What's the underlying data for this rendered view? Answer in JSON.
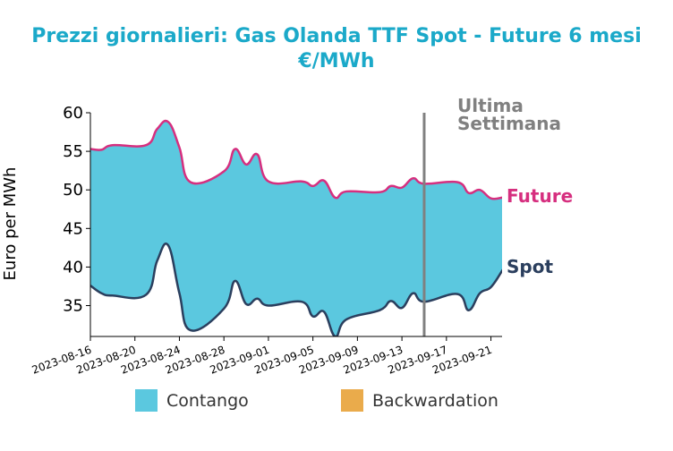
{
  "chart_data": {
    "type": "area",
    "title_line1": "Prezzi giornalieri: Gas Olanda TTF Spot - Future 6 mesi",
    "title_line2": "€/MWh",
    "ylabel": "Euro per MWh",
    "ylim": [
      31,
      60
    ],
    "yticks": [
      35,
      40,
      45,
      50,
      55,
      60
    ],
    "x_start": "2023-08-16",
    "x_end": "2023-09-22",
    "xtick_labels": [
      "2023-08-16",
      "2023-08-20",
      "2023-08-24",
      "2023-08-28",
      "2023-09-01",
      "2023-09-05",
      "2023-09-09",
      "2023-09-13",
      "2023-09-17",
      "2023-09-21"
    ],
    "dates": [
      "2023-08-16",
      "2023-08-17",
      "2023-08-18",
      "2023-08-21",
      "2023-08-22",
      "2023-08-23",
      "2023-08-24",
      "2023-08-25",
      "2023-08-28",
      "2023-08-29",
      "2023-08-30",
      "2023-08-31",
      "2023-09-01",
      "2023-09-04",
      "2023-09-05",
      "2023-09-06",
      "2023-09-07",
      "2023-09-08",
      "2023-09-11",
      "2023-09-12",
      "2023-09-13",
      "2023-09-14",
      "2023-09-15",
      "2023-09-18",
      "2023-09-19",
      "2023-09-20",
      "2023-09-21",
      "2023-09-22"
    ],
    "series": [
      {
        "name": "Future",
        "color": "#d62f7f",
        "values": [
          55.3,
          55.2,
          55.8,
          55.8,
          57.9,
          58.8,
          55.5,
          51.0,
          52.4,
          55.3,
          53.3,
          54.6,
          51.1,
          51.1,
          50.5,
          51.2,
          49.0,
          49.8,
          49.7,
          50.5,
          50.3,
          51.5,
          50.8,
          51.0,
          49.6,
          50.0,
          48.9,
          49.0
        ]
      },
      {
        "name": "Spot",
        "color": "#2b3f5e",
        "values": [
          37.6,
          36.6,
          36.3,
          36.4,
          40.8,
          42.8,
          36.6,
          31.8,
          34.6,
          38.2,
          35.2,
          35.9,
          35.0,
          35.5,
          33.6,
          34.2,
          31.0,
          33.2,
          34.4,
          35.6,
          34.7,
          36.6,
          35.5,
          36.5,
          34.4,
          36.6,
          37.4,
          39.5
        ]
      }
    ],
    "marker_date": "2023-09-15",
    "marker_label_line1": "Ultima",
    "marker_label_line2": "Settimana",
    "legend": [
      {
        "name": "Contango",
        "color": "#5bc8df"
      },
      {
        "name": "Backwardation",
        "color": "#eaab4b"
      }
    ],
    "legend_position": "bottom",
    "grid": false
  },
  "colors": {
    "title": "#1ba9c9",
    "marker": "#808080",
    "contango": "#5bc8df",
    "backwardation": "#eaab4b"
  }
}
